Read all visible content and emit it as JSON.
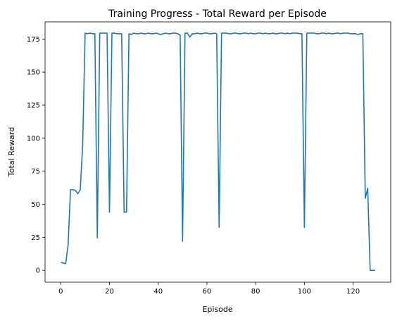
{
  "chart_data": {
    "type": "line",
    "title": "Training Progress - Total Reward per Episode",
    "xlabel": "Episode",
    "ylabel": "Total Reward",
    "xlim": [
      -6.45,
      135.45
    ],
    "ylim": [
      -9.0,
      188.0
    ],
    "xticks": [
      0,
      20,
      40,
      60,
      80,
      100,
      120
    ],
    "yticks": [
      0,
      25,
      50,
      75,
      100,
      125,
      150,
      175
    ],
    "grid": false,
    "legend": "none",
    "series_color": "#1f77b4",
    "series": [
      {
        "x": [
          0,
          1,
          2,
          3,
          4,
          5,
          6,
          7,
          8,
          9,
          10,
          11,
          12,
          13,
          14,
          15,
          16,
          17,
          18,
          19,
          20,
          21,
          22,
          23,
          24,
          25,
          26,
          27,
          28,
          29,
          30,
          31,
          32,
          33,
          34,
          35,
          36,
          37,
          38,
          39,
          40,
          41,
          42,
          43,
          44,
          45,
          46,
          47,
          48,
          49,
          50,
          51,
          52,
          53,
          54,
          55,
          56,
          57,
          58,
          59,
          60,
          61,
          62,
          63,
          64,
          65,
          66,
          67,
          68,
          69,
          70,
          71,
          72,
          73,
          74,
          75,
          76,
          77,
          78,
          79,
          80,
          81,
          82,
          83,
          84,
          85,
          86,
          87,
          88,
          89,
          90,
          91,
          92,
          93,
          94,
          95,
          96,
          97,
          98,
          99,
          100,
          101,
          102,
          103,
          104,
          105,
          106,
          107,
          108,
          109,
          110,
          111,
          112,
          113,
          114,
          115,
          116,
          117,
          118,
          119,
          120,
          121,
          122,
          123,
          124,
          125,
          126,
          127,
          128,
          129
        ],
        "values": [
          6,
          5.5,
          5,
          19,
          61,
          61,
          60.5,
          58,
          61,
          95,
          179.5,
          179,
          179.5,
          179,
          179,
          24.5,
          179.5,
          179.5,
          179.5,
          179.5,
          44,
          179.5,
          179.5,
          179,
          179,
          179,
          44,
          44,
          179,
          178.5,
          179.5,
          179,
          179,
          179.5,
          179,
          179,
          179.5,
          179,
          179,
          179.5,
          179,
          178.5,
          179,
          179.5,
          179,
          179,
          179.5,
          179.5,
          179,
          178,
          22,
          179.5,
          179.5,
          176.5,
          179,
          179,
          179.5,
          179,
          179,
          179.5,
          179.5,
          179,
          179,
          179.5,
          179,
          32.5,
          179.5,
          179.5,
          179.5,
          179,
          179,
          179.5,
          179.5,
          179,
          179,
          179.5,
          179.5,
          179,
          179.5,
          179,
          179,
          179.5,
          179.5,
          179,
          179.5,
          179,
          179,
          179.5,
          179,
          179,
          179.5,
          179.5,
          179,
          179.5,
          179,
          179.5,
          179.5,
          179.5,
          179,
          179,
          32.5,
          179.5,
          179.5,
          179.5,
          179.5,
          179,
          179,
          179.5,
          179.5,
          179,
          179.5,
          179,
          179,
          179.5,
          179.5,
          179,
          179.5,
          179.5,
          179.5,
          179,
          179,
          179,
          178.5,
          179,
          179,
          54.5,
          62,
          0,
          0,
          0
        ]
      }
    ]
  }
}
